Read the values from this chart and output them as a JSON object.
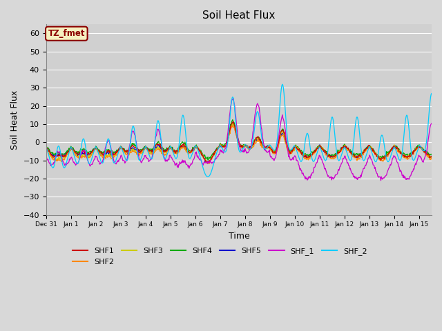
{
  "title": "Soil Heat Flux",
  "xlabel": "Time",
  "ylabel": "Soil Heat Flux",
  "ylim": [
    -40,
    65
  ],
  "yticks": [
    -40,
    -30,
    -20,
    -10,
    0,
    10,
    20,
    30,
    40,
    50,
    60
  ],
  "background_color": "#d8d8d8",
  "plot_bg_color": "#d0d0d0",
  "series_colors": {
    "SHF1": "#cc0000",
    "SHF2": "#ff8800",
    "SHF3": "#cccc00",
    "SHF4": "#00aa00",
    "SHF5": "#0000cc",
    "SHF_1": "#cc00cc",
    "SHF_2": "#00ccff"
  },
  "annotation_text": "TZ_fmet",
  "annotation_color": "#8b0000",
  "annotation_bg": "#f5f0c0",
  "tick_labels": [
    "Dec 31",
    "Jan 1",
    "Jan 2",
    "Jan 3",
    "Jan 4",
    "Jan 5",
    "Jan 6",
    "Jan 7",
    "Jan 8",
    "Jan 9",
    "Jan 10",
    "Jan 11",
    "Jan 12",
    "Jan 13",
    "Jan 14",
    "Jan 15"
  ]
}
